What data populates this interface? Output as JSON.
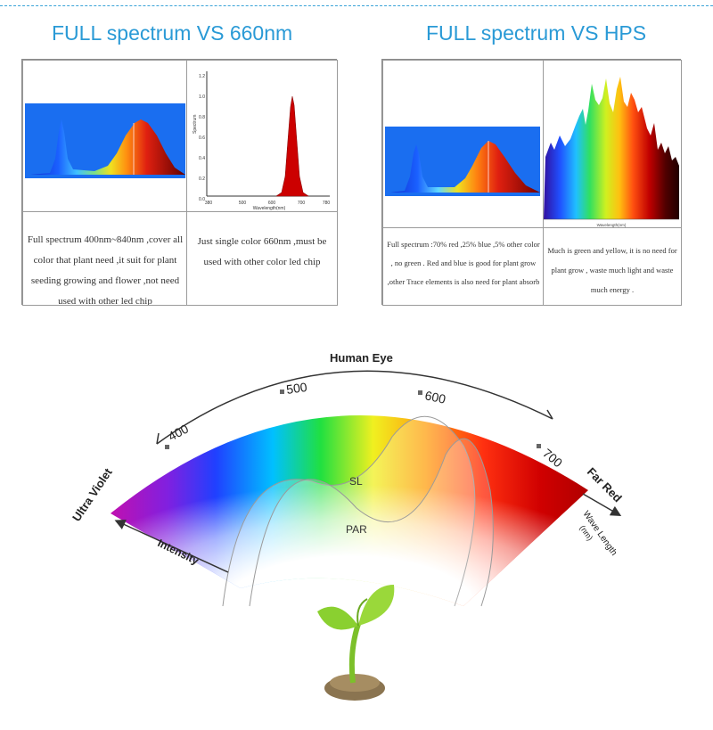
{
  "headings": {
    "left": "FULL spectrum VS 660nm",
    "right": "FULL spectrum VS HPS"
  },
  "panel_left": {
    "caption_a": "Full spectrum 400nm~840nm ,cover all color that plant need ,it suit for plant seeding growing and flower ,not need used with other led chip",
    "caption_b": "Just single color 660nm ,must be used with other color led chip",
    "chart_660": {
      "ylabel": "Spectrum",
      "xlabel": "Wavelength(nm)",
      "yticks": [
        "0.0",
        "0.2",
        "0.4",
        "0.6",
        "0.8",
        "1.0",
        "1.2"
      ],
      "xticks": [
        "380",
        "500",
        "600",
        "700",
        "780"
      ]
    }
  },
  "panel_right": {
    "caption_a": "Full spectrum :70% red ,25% blue ,5% other color , no green . Red and blue is good for plant grow ,other Trace elements is also need for plant absorb",
    "caption_b": "Much is green and yellow, it is no need for plant grow , waste much light and waste much energy .",
    "hps_xlabel": "Wavelength(nm)"
  },
  "diagram": {
    "human_eye": "Human Eye",
    "ultra_violet": "Ultra Violet",
    "far_red": "Far Red",
    "intensity": "Intensity",
    "wave_length": "Wave Length",
    "wave_unit": "(nm)",
    "sl": "SL",
    "par": "PAR",
    "ticks": [
      "400",
      "500",
      "600",
      "700"
    ]
  },
  "colors": {
    "heading": "#2a9ad6",
    "spectrum_bg": "#1a6ef0",
    "red_peak": "#cc0000"
  }
}
